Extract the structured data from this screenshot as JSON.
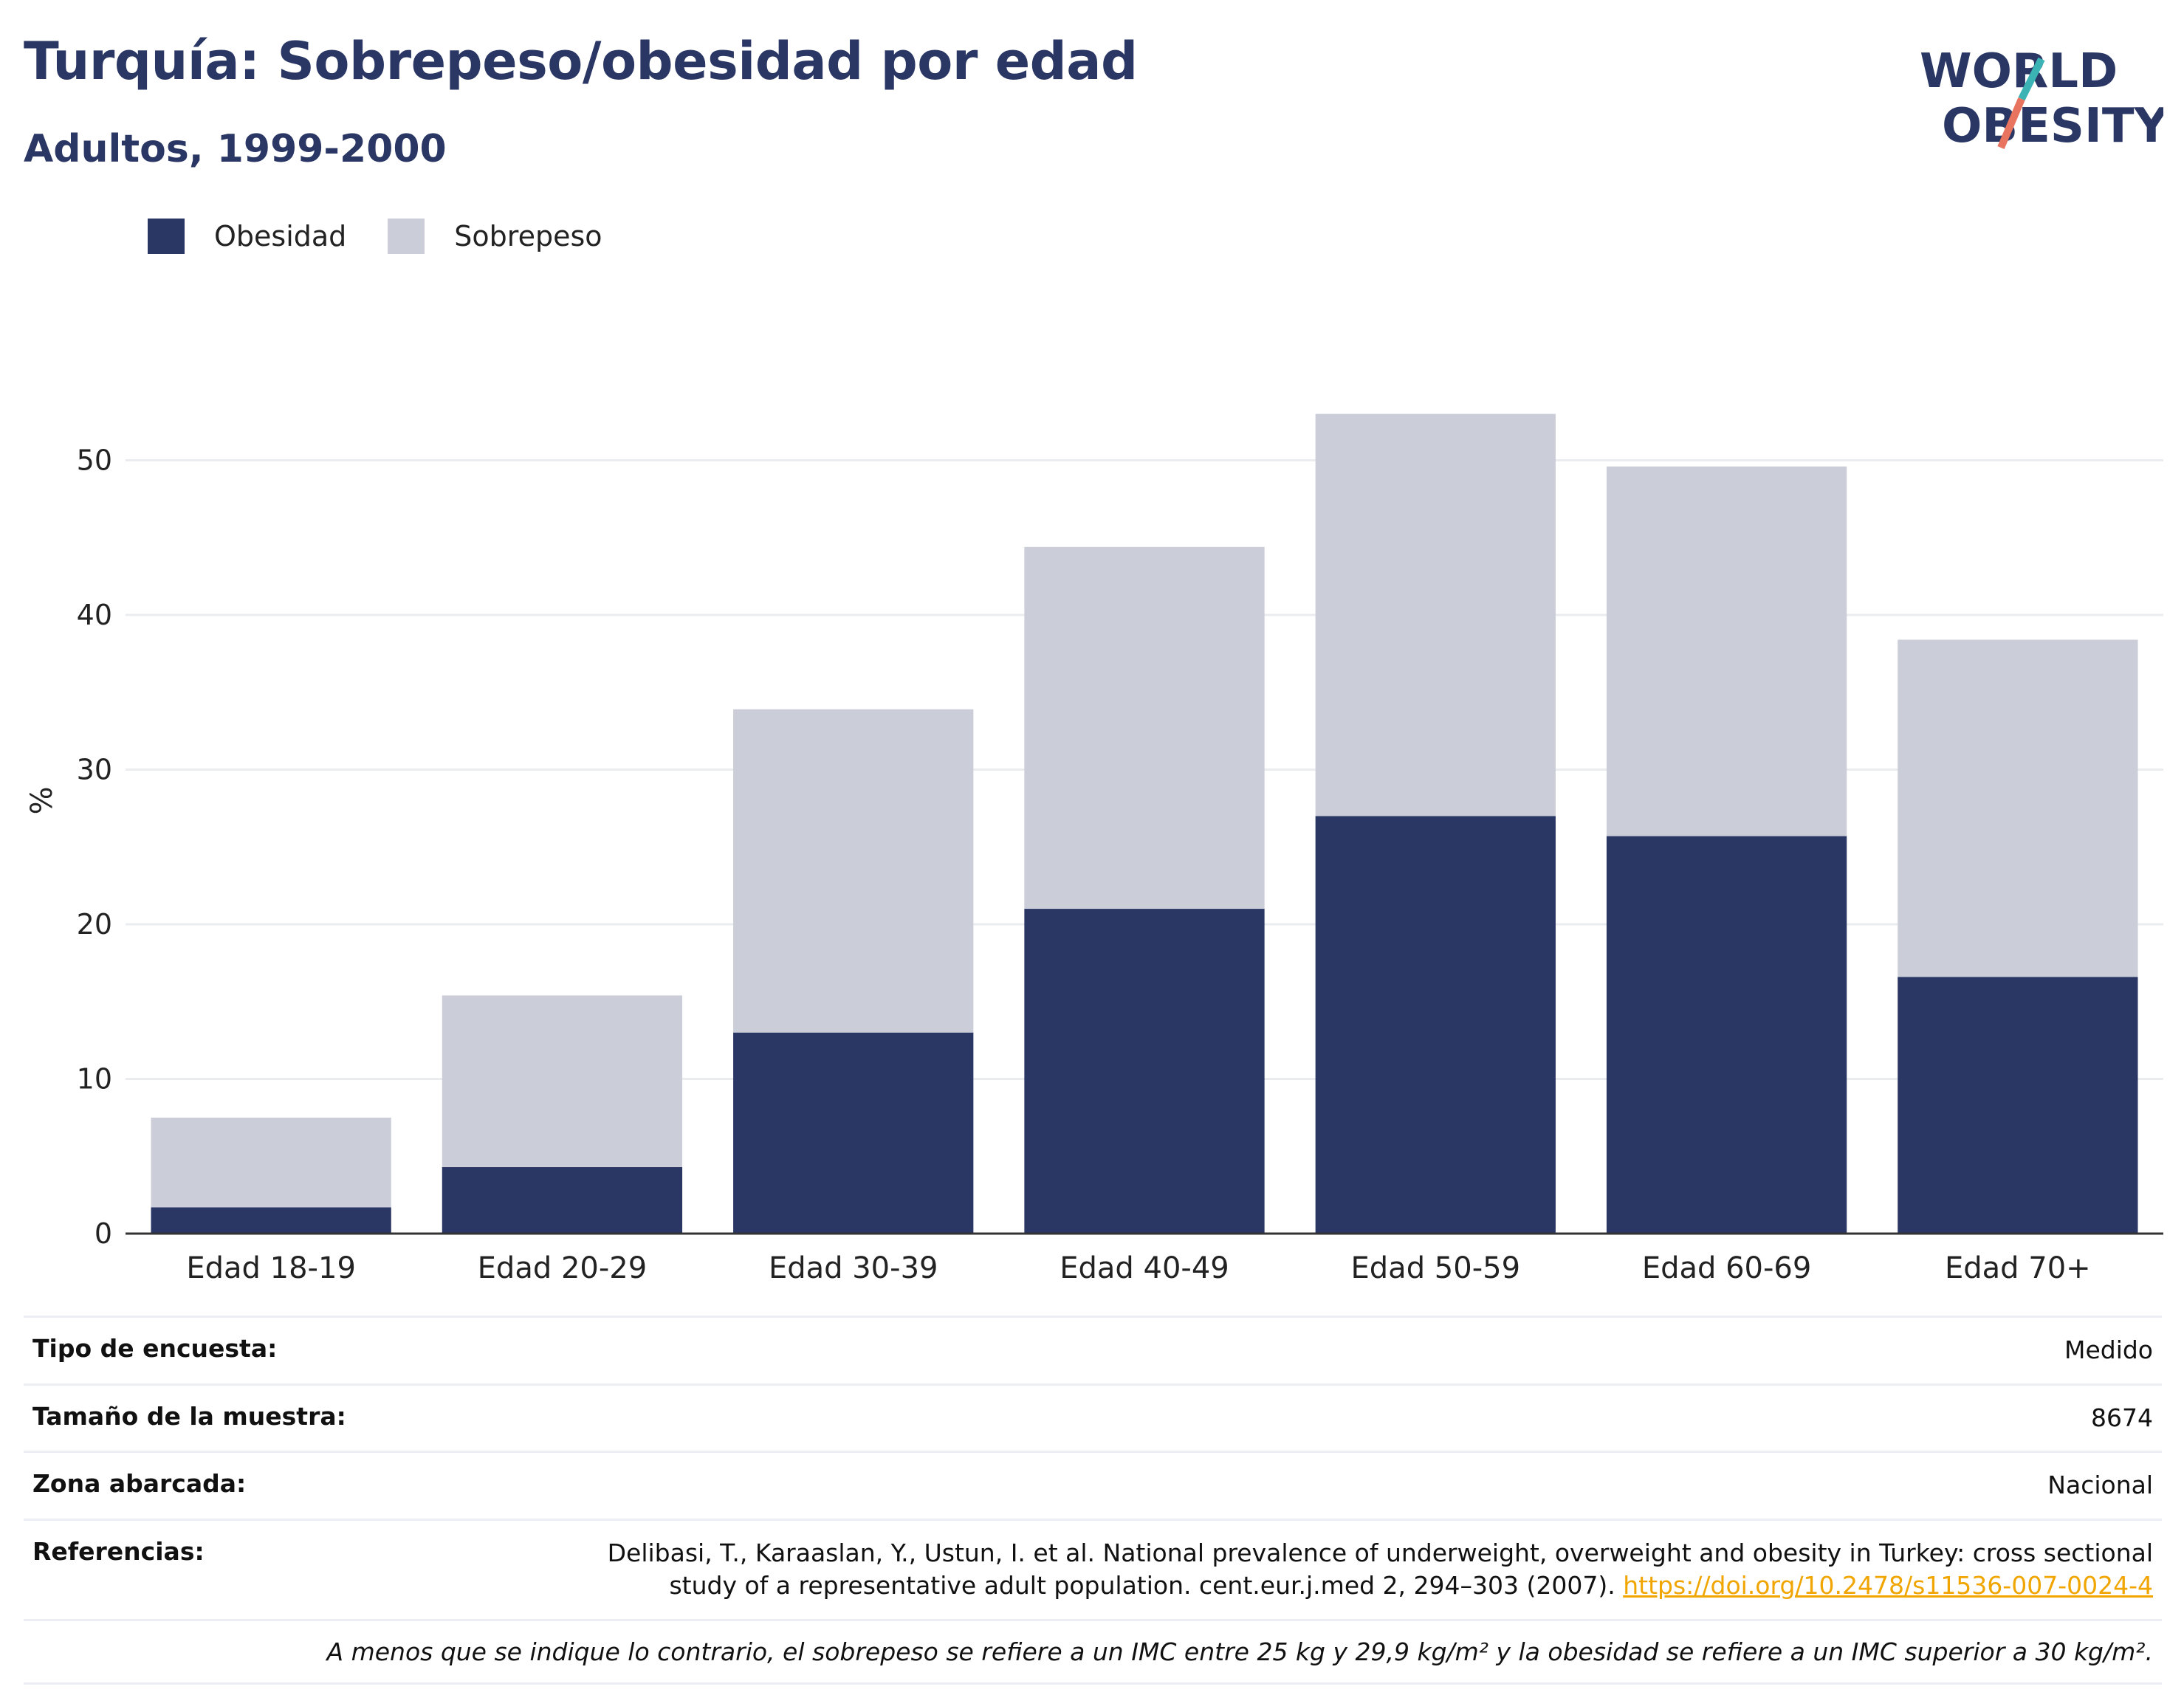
{
  "header": {
    "title": "Turquía: Sobrepeso/obesidad por edad",
    "subtitle": "Adultos, 1999-2000"
  },
  "logo": {
    "line1": "WORLD",
    "line2": "OBESITY",
    "slash_colors": [
      "#3bb3b5",
      "#e8735f"
    ]
  },
  "legend": [
    {
      "label": "Obesidad",
      "color": "#2a3663"
    },
    {
      "label": "Sobrepeso",
      "color": "#cbcdd8"
    }
  ],
  "chart_data": {
    "type": "bar",
    "stacked": true,
    "categories": [
      "Edad 18-19",
      "Edad 20-29",
      "Edad 30-39",
      "Edad 40-49",
      "Edad 50-59",
      "Edad 60-69",
      "Edad 70+"
    ],
    "series": [
      {
        "name": "Obesidad",
        "color": "#2a3663",
        "values": [
          1.7,
          4.3,
          13.0,
          21.0,
          27.0,
          25.7,
          16.6
        ]
      },
      {
        "name": "Sobrepeso",
        "color": "#cbcdd8",
        "values": [
          5.8,
          11.1,
          20.9,
          23.4,
          26.0,
          23.9,
          21.8
        ]
      }
    ],
    "ylabel": "%",
    "ylim": [
      0,
      55
    ],
    "yticks": [
      0,
      10,
      20,
      30,
      40,
      50
    ],
    "grid": true,
    "legend_position": "top-left"
  },
  "info": [
    {
      "key": "Tipo de encuesta:",
      "value": "Medido"
    },
    {
      "key": "Tamaño de la muestra:",
      "value": "8674"
    },
    {
      "key": "Zona abarcada:",
      "value": "Nacional"
    }
  ],
  "reference": {
    "key": "Referencias:",
    "text": "Delibasi, T., Karaaslan, Y., Ustun, I. et al. National prevalence of underweight, overweight and obesity in Turkey: cross sectional study of a representative adult population. cent.eur.j.med 2, 294–303 (2007).",
    "link": "https://doi.org/10.2478/s11536-007-0024-4"
  },
  "note": "A menos que se indique lo contrario, el sobrepeso se refiere a un IMC entre 25 kg y 29,9 kg/m² y la obesidad se refiere a un IMC superior a 30 kg/m²."
}
